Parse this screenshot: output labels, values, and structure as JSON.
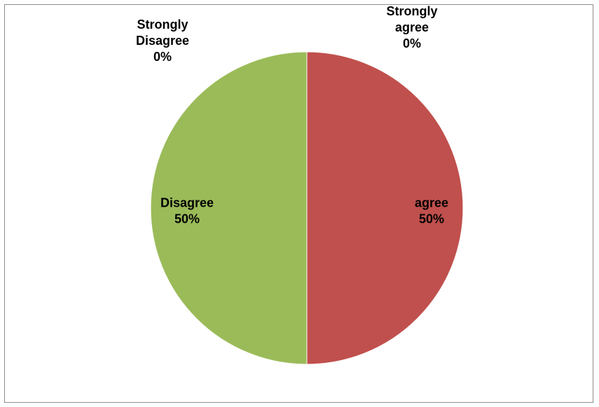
{
  "chart_data": {
    "type": "pie",
    "title": "",
    "start_angle_deg": 0,
    "direction": "clockwise",
    "slices": [
      {
        "name": "Strongly agree",
        "label_lines": [
          "Strongly",
          "agree",
          "0%"
        ],
        "value": 0,
        "color": "#C0504D"
      },
      {
        "name": "agree",
        "label_lines": [
          "agree",
          "50%"
        ],
        "value": 50,
        "color": "#C0504D"
      },
      {
        "name": "Disagree",
        "label_lines": [
          "Disagree",
          "50%"
        ],
        "value": 50,
        "color": "#9BBB59"
      },
      {
        "name": "Strongly Disagree",
        "label_lines": [
          "Strongly",
          "Disagree",
          "0%"
        ],
        "value": 0,
        "color": "#9BBB59"
      }
    ],
    "legend": "none",
    "border_color": "#8C8C8C"
  }
}
